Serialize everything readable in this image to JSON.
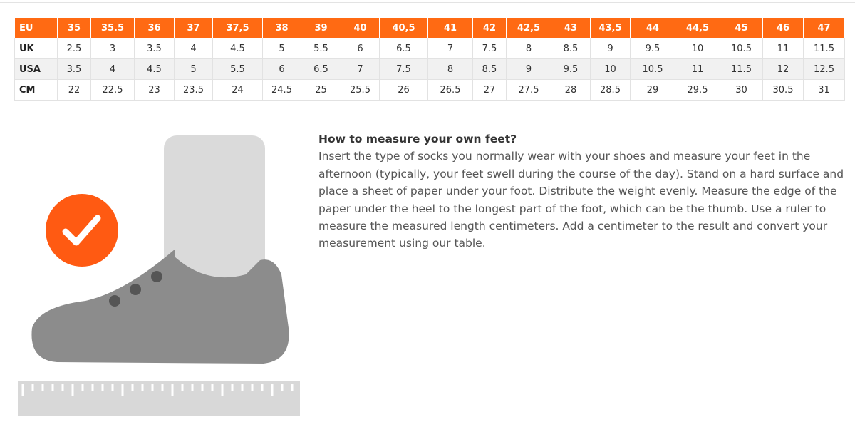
{
  "table": {
    "rows": [
      [
        "EU",
        "35",
        "35.5",
        "36",
        "37",
        "37,5",
        "38",
        "39",
        "40",
        "40,5",
        "41",
        "42",
        "42,5",
        "43",
        "43,5",
        "44",
        "44,5",
        "45",
        "46",
        "47"
      ],
      [
        "UK",
        "2.5",
        "3",
        "3.5",
        "4",
        "4.5",
        "5",
        "5.5",
        "6",
        "6.5",
        "7",
        "7.5",
        "8",
        "8.5",
        "9",
        "9.5",
        "10",
        "10.5",
        "11",
        "11.5"
      ],
      [
        "USA",
        "3.5",
        "4",
        "4.5",
        "5",
        "5.5",
        "6",
        "6.5",
        "7",
        "7.5",
        "8",
        "8.5",
        "9",
        "9.5",
        "10",
        "10.5",
        "11",
        "11.5",
        "12",
        "12.5"
      ],
      [
        "CM",
        "22",
        "22.5",
        "23",
        "23.5",
        "24",
        "24.5",
        "25",
        "25.5",
        "26",
        "26.5",
        "27",
        "27.5",
        "28",
        "28.5",
        "29",
        "29.5",
        "30",
        "30.5",
        "31"
      ]
    ]
  },
  "guide": {
    "title": "How to measure your own feet?",
    "text": "Insert the type of socks you normally wear with your shoes and measure your feet in the afternoon (typically, your feet swell during the course of the day). Stand on a hard surface and place a sheet of paper under your foot. Distribute the weight evenly. Measure the edge of the paper under the heel to the longest part of the foot, which can be the thumb. Use a ruler to measure the measured length centimeters. Add a centimeter to the result and convert your measurement using our table."
  }
}
